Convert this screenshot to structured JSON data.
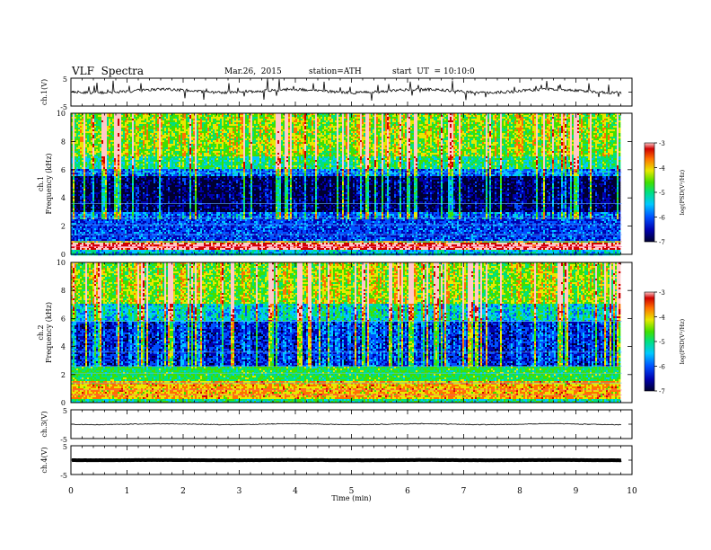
{
  "header": {
    "title": "VLF  Spectra",
    "date": "Mar.26,  2015",
    "station": "station=ATH",
    "start_label": "start  UT  =",
    "start_time": "10:10:0"
  },
  "chart_data": [
    {
      "type": "line",
      "panel": "ch1-waveform",
      "ylabel": "ch.1(V)",
      "ylim": [
        -5,
        5
      ],
      "yticks": [
        "5",
        "-5"
      ],
      "xlim": [
        0,
        10
      ],
      "data_end_min": 9.82,
      "baseline_v": 0.4,
      "note_shape": "noisy waveform with sferic spikes"
    },
    {
      "type": "heatmap",
      "panel": "ch1-spectrogram",
      "ylabel": "ch.1\nFrequency  (kHz)",
      "ylabel_line1": "ch.1",
      "ylabel_line2": "Frequency  (kHz)",
      "ylim": [
        0,
        10
      ],
      "yticks": [
        "0",
        "2",
        "4",
        "6",
        "8",
        "10"
      ],
      "xlim": [
        0,
        10
      ],
      "data_end_min": 9.82,
      "colorbar": {
        "label": "log(PSD(V²/Hz)",
        "range": [
          -7,
          -3
        ],
        "ticks": [
          "-3",
          "-4",
          "-5",
          "-6",
          "-7"
        ]
      },
      "frequency_bands": [
        {
          "f0": 0.0,
          "f1": 0.3,
          "level": -5.5
        },
        {
          "f0": 0.3,
          "f1": 0.8,
          "level": -3.4
        },
        {
          "f0": 0.8,
          "f1": 1.0,
          "level": -4.8
        },
        {
          "f0": 1.0,
          "f1": 3.0,
          "level": -6.1
        },
        {
          "f0": 3.0,
          "f1": 5.6,
          "level": -6.8
        },
        {
          "f0": 5.6,
          "f1": 6.0,
          "level": -6.0
        },
        {
          "f0": 6.0,
          "f1": 7.0,
          "level": -5.3
        },
        {
          "f0": 7.0,
          "f1": 10.0,
          "level": -4.8
        }
      ]
    },
    {
      "type": "heatmap",
      "panel": "ch2-spectrogram",
      "ylabel_line1": "ch.2",
      "ylabel_line2": "Frequency  (kHz)",
      "ylim": [
        0,
        10
      ],
      "yticks": [
        "0",
        "2",
        "4",
        "6",
        "8",
        "10"
      ],
      "xlim": [
        0,
        10
      ],
      "data_end_min": 9.82,
      "colorbar": {
        "label": "log(PSD(V²/Hz)",
        "range": [
          -7,
          -3
        ],
        "ticks": [
          "-3",
          "-4",
          "-5",
          "-6",
          "-7"
        ]
      },
      "frequency_bands": [
        {
          "f0": 0.0,
          "f1": 0.3,
          "level": -5.2
        },
        {
          "f0": 0.3,
          "f1": 1.6,
          "level": -4.2
        },
        {
          "f0": 1.6,
          "f1": 2.6,
          "level": -5.0
        },
        {
          "f0": 2.6,
          "f1": 5.8,
          "level": -6.3
        },
        {
          "f0": 5.8,
          "f1": 7.0,
          "level": -5.6
        },
        {
          "f0": 7.0,
          "f1": 10.0,
          "level": -4.8
        }
      ]
    },
    {
      "type": "line",
      "panel": "ch3-waveform",
      "ylabel": "ch.3(V)",
      "ylim": [
        -5,
        5
      ],
      "yticks": [
        "5",
        "-5"
      ],
      "xlim": [
        0,
        10
      ],
      "data_end_min": 9.82,
      "baseline_v": 0.0
    },
    {
      "type": "line",
      "panel": "ch4-waveform",
      "ylabel": "ch.4(V)",
      "ylim": [
        -5,
        5
      ],
      "yticks": [
        "5",
        "-5"
      ],
      "xlim": [
        0,
        10
      ],
      "data_end_min": 9.82,
      "baseline_v": 0.0
    }
  ],
  "xaxis": {
    "label": "Time  (min)",
    "ticks": [
      "0",
      "1",
      "2",
      "3",
      "4",
      "5",
      "6",
      "7",
      "8",
      "9",
      "10"
    ]
  },
  "colors": {
    "colormap": [
      "#000030",
      "#0000b0",
      "#0050ff",
      "#00c8ff",
      "#00e080",
      "#40e000",
      "#e8e800",
      "#ff7000",
      "#d00000",
      "#ffc8c8"
    ],
    "trace": "#000000"
  }
}
